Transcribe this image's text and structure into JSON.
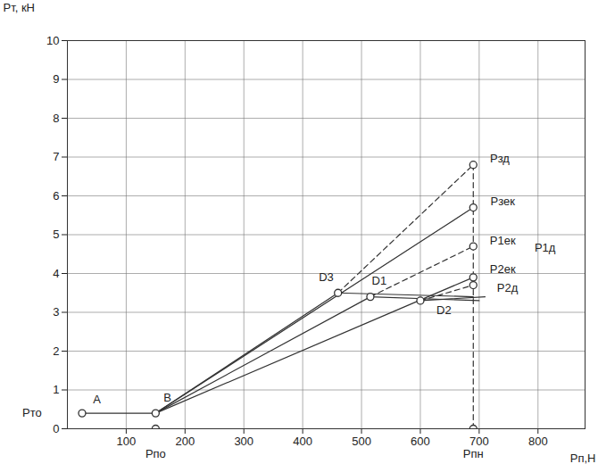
{
  "chart_data": {
    "type": "line",
    "x_label": "Pп,Н",
    "y_label": "Pт, кН",
    "xlim": [
      0,
      880
    ],
    "ylim": [
      0,
      10
    ],
    "xticks": [
      100,
      200,
      300,
      400,
      500,
      600,
      700,
      800
    ],
    "yticks": [
      0,
      1,
      2,
      3,
      4,
      5,
      6,
      7,
      8,
      9,
      10
    ],
    "grid": true,
    "series": [
      {
        "x": [
          25,
          150
        ],
        "values": [
          0.4,
          0.4
        ],
        "color": "#333333",
        "line_style": "solid"
      },
      {
        "x": [
          150,
          460
        ],
        "values": [
          0.4,
          3.5
        ],
        "color": "#333333",
        "line_style": "solid"
      },
      {
        "x": [
          460,
          690
        ],
        "values": [
          3.5,
          6.8
        ],
        "color": "#333333",
        "line_style": "dashed"
      },
      {
        "x": [
          150,
          690
        ],
        "values": [
          0.4,
          5.7
        ],
        "color": "#333333",
        "line_style": "solid"
      },
      {
        "x": [
          150,
          515
        ],
        "values": [
          0.4,
          3.4
        ],
        "color": "#333333",
        "line_style": "solid"
      },
      {
        "x": [
          515,
          690
        ],
        "values": [
          3.4,
          4.7
        ],
        "color": "#333333",
        "line_style": "dashed"
      },
      {
        "x": [
          150,
          690
        ],
        "values": [
          0.4,
          3.9
        ],
        "color": "#333333",
        "line_style": "solid"
      },
      {
        "x": [
          600,
          690
        ],
        "values": [
          3.3,
          3.7
        ],
        "color": "#333333",
        "line_style": "dashed"
      },
      {
        "x": [
          460,
          690
        ],
        "values": [
          3.5,
          3.4
        ],
        "color": "#333333",
        "line_style": "solid"
      },
      {
        "x": [
          515,
          700
        ],
        "values": [
          3.4,
          3.3
        ],
        "color": "#333333",
        "line_style": "solid"
      },
      {
        "x": [
          600,
          710
        ],
        "values": [
          3.3,
          3.4
        ],
        "color": "#333333",
        "line_style": "solid"
      },
      {
        "x": [
          690,
          690
        ],
        "values": [
          0,
          6.8
        ],
        "color": "#333333",
        "line_style": "dashed"
      },
      {
        "type": "scatter",
        "marker": "circle",
        "color": "#333333",
        "x": [
          25,
          150,
          150,
          460,
          515,
          600,
          690,
          690,
          690,
          690,
          690,
          690
        ],
        "values": [
          0.4,
          0.4,
          0,
          3.5,
          3.4,
          3.3,
          6.8,
          5.7,
          4.7,
          3.9,
          3.7,
          0
        ]
      }
    ],
    "annotations": [
      {
        "text": "Pто",
        "x": -60,
        "y": 0.4
      },
      {
        "text": "A",
        "x": 50,
        "y": 0.75
      },
      {
        "text": "B",
        "x": 170,
        "y": 0.8
      },
      {
        "text": "Pпо",
        "x": 150,
        "y": -0.65
      },
      {
        "text": "Pпн",
        "x": 690,
        "y": -0.65
      },
      {
        "text": "D3",
        "x": 440,
        "y": 3.9
      },
      {
        "text": "D1",
        "x": 530,
        "y": 3.8
      },
      {
        "text": "D2",
        "x": 640,
        "y": 3.05
      },
      {
        "text": "Pзд",
        "x": 735,
        "y": 6.95
      },
      {
        "text": "Pзек",
        "x": 740,
        "y": 5.85
      },
      {
        "text": "P1ек",
        "x": 740,
        "y": 4.85
      },
      {
        "text": "P1д",
        "x": 812,
        "y": 4.65
      },
      {
        "text": "P2ек",
        "x": 740,
        "y": 4.1
      },
      {
        "text": "P2д",
        "x": 748,
        "y": 3.62
      }
    ]
  }
}
